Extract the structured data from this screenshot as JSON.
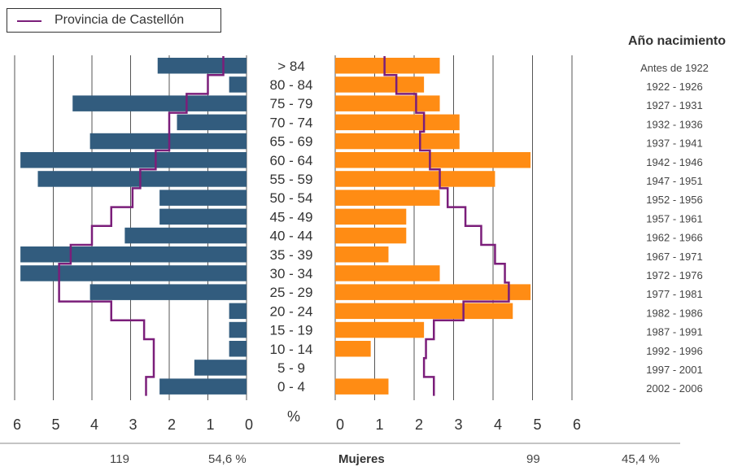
{
  "chart_data": {
    "type": "bar",
    "subtype": "population-pyramid",
    "legend": {
      "label": "Provincia de Castellón",
      "color": "#7b1e7a",
      "placement": "top-left"
    },
    "center_axis_title": "%",
    "years_title": "Año nacimiento",
    "categories": [
      ">  84",
      "80 - 84",
      "75 - 79",
      "70 - 74",
      "65 - 69",
      "60 - 64",
      "55 - 59",
      "50 - 54",
      "45 - 49",
      "40 - 44",
      "35 - 39",
      "30 - 34",
      "25 - 29",
      "20 - 24",
      "15 - 19",
      "10 - 14",
      "5 - 9",
      "0 - 4"
    ],
    "years": [
      "Antes de 1922",
      "1922 - 1926",
      "1927 - 1931",
      "1932 - 1936",
      "1937 - 1941",
      "1942 - 1946",
      "1947 - 1951",
      "1952 - 1956",
      "1957 - 1961",
      "1962 - 1966",
      "1967 - 1971",
      "1972 - 1976",
      "1977 - 1981",
      "1982 - 1986",
      "1987 - 1991",
      "1992 - 1996",
      "1997 - 2001",
      "2002 - 2006"
    ],
    "left": {
      "color": "#325c7e",
      "values": [
        2.3,
        0.45,
        4.5,
        1.8,
        4.05,
        5.85,
        5.4,
        2.25,
        2.25,
        3.15,
        5.85,
        5.85,
        4.05,
        0.45,
        0.45,
        0.45,
        1.35,
        2.25
      ],
      "province": [
        0.6,
        1.0,
        1.55,
        2.0,
        2.0,
        2.35,
        2.75,
        2.95,
        3.5,
        4.0,
        4.55,
        4.85,
        4.85,
        3.5,
        2.65,
        2.4,
        2.4,
        2.6
      ],
      "axis_ticks": [
        6,
        5,
        4,
        3,
        2,
        1,
        0
      ],
      "xlim": [
        0,
        6
      ]
    },
    "right": {
      "color": "#ff8c14",
      "values": [
        2.65,
        2.25,
        2.65,
        3.15,
        3.15,
        4.95,
        4.05,
        2.65,
        1.8,
        1.8,
        1.35,
        2.65,
        4.95,
        4.5,
        2.25,
        0.9,
        0,
        1.35
      ],
      "province": [
        1.25,
        1.55,
        2.05,
        2.25,
        2.15,
        2.4,
        2.65,
        2.85,
        3.3,
        3.7,
        4.05,
        4.3,
        4.4,
        3.25,
        2.5,
        2.3,
        2.25,
        2.5
      ],
      "axis_ticks": [
        0,
        1,
        2,
        3,
        4,
        5,
        6
      ],
      "xlim": [
        0,
        6
      ]
    },
    "grid": true
  },
  "footer": {
    "left_count": "119",
    "left_pct": "54,6 %",
    "title": "Mujeres",
    "right_count": "99",
    "right_pct": "45,4 %"
  }
}
